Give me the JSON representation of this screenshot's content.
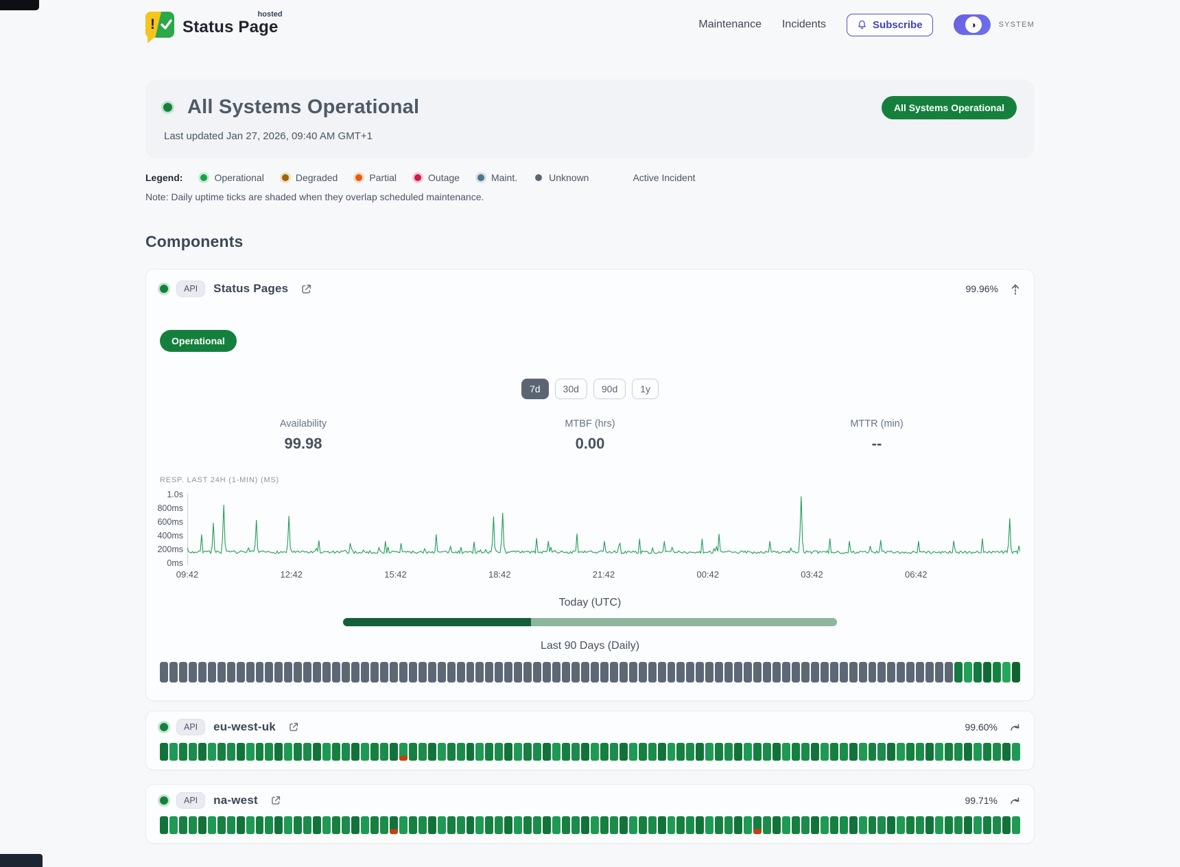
{
  "header": {
    "brand": {
      "title": "Status Page",
      "superscript": "hosted"
    },
    "nav_items": [
      "Maintenance",
      "Incidents"
    ],
    "subscribe_label": "Subscribe",
    "theme_toggle_label": "SYSTEM"
  },
  "hero": {
    "title": "All Systems Operational",
    "last_updated": "Last updated Jan 27, 2026, 09:40 AM GMT+1",
    "badge_label": "All Systems Operational",
    "badge_color": "#15803d"
  },
  "legend": {
    "label": "Legend:",
    "items": [
      {
        "label": "Operational",
        "color": "#16a34a",
        "ring": "#cbe9d6"
      },
      {
        "label": "Degraded",
        "color": "#a16207",
        "ring": "#ecdfc0"
      },
      {
        "label": "Partial",
        "color": "#e65c0d",
        "ring": "#f6d9c4"
      },
      {
        "label": "Outage",
        "color": "#c81e4a",
        "ring": "#f3c6d2"
      },
      {
        "label": "Maint.",
        "color": "#4f7587",
        "ring": "#d3e2eb"
      },
      {
        "label": "Unknown",
        "color": "#5b6672",
        "ring": "transparent"
      }
    ],
    "active_incident_label": "Active Incident",
    "note": "Note: Daily uptime ticks are shaded when they overlap scheduled maintenance."
  },
  "components": {
    "heading": "Components",
    "expanded": {
      "status_color": "#15803d",
      "type_badge": "API",
      "name": "Status Pages",
      "uptime": "99.96%",
      "status_label": "Operational",
      "range_options": [
        "7d",
        "30d",
        "90d",
        "1y"
      ],
      "active_range": "7d",
      "stats": [
        {
          "label": "Availability",
          "value": "99.98"
        },
        {
          "label": "MTBF (hrs)",
          "value": "0.00"
        },
        {
          "label": "MTTR (min)",
          "value": "--"
        }
      ],
      "chart_data": {
        "type": "line",
        "title": "RESP. LAST 24H (1-MIN) (MS)",
        "color": "#1f9d57",
        "ylim": [
          0,
          1000
        ],
        "y_ticks": [
          {
            "label": "1.0s",
            "value": 1000
          },
          {
            "label": "800ms",
            "value": 800
          },
          {
            "label": "600ms",
            "value": 600
          },
          {
            "label": "400ms",
            "value": 400
          },
          {
            "label": "200ms",
            "value": 200
          },
          {
            "label": "0ms",
            "value": 0
          }
        ],
        "x_ticks": [
          "09:42",
          "12:42",
          "15:42",
          "18:42",
          "21:42",
          "00:42",
          "03:42",
          "06:42"
        ],
        "baseline_ms": 150,
        "noise_ms": 40,
        "spikes": [
          [
            0.017,
            430
          ],
          [
            0.031,
            600
          ],
          [
            0.044,
            860
          ],
          [
            0.083,
            640
          ],
          [
            0.122,
            700
          ],
          [
            0.158,
            340
          ],
          [
            0.196,
            300
          ],
          [
            0.238,
            330
          ],
          [
            0.257,
            300
          ],
          [
            0.299,
            430
          ],
          [
            0.345,
            320
          ],
          [
            0.368,
            690
          ],
          [
            0.379,
            745
          ],
          [
            0.42,
            375
          ],
          [
            0.433,
            330
          ],
          [
            0.468,
            440
          ],
          [
            0.5,
            330
          ],
          [
            0.52,
            300
          ],
          [
            0.543,
            365
          ],
          [
            0.572,
            330
          ],
          [
            0.618,
            365
          ],
          [
            0.638,
            435
          ],
          [
            0.7,
            330
          ],
          [
            0.737,
            985
          ],
          [
            0.772,
            370
          ],
          [
            0.795,
            330
          ],
          [
            0.832,
            345
          ],
          [
            0.878,
            330
          ],
          [
            0.92,
            335
          ],
          [
            0.955,
            370
          ],
          [
            0.988,
            665
          ]
        ]
      },
      "today": {
        "label": "Today (UTC)",
        "progress_pct": 38,
        "bar_fill": "#15603a",
        "bar_track": "#8cb79c"
      },
      "history": {
        "label": "Last 90 Days (Daily)",
        "count": 90,
        "default": "unknown",
        "unknown_color": "#5d6876",
        "operational_from": 83,
        "green_shades": [
          "#157a40",
          "#1fa257",
          "#137a3e",
          "#0e6b35",
          "#15833f",
          "#22a85b",
          "#10632f"
        ]
      }
    },
    "collapsed": [
      {
        "status_color": "#15803d",
        "type_badge": "API",
        "name": "eu-west-uk",
        "uptime": "99.60%",
        "ticks": {
          "count": 90,
          "default": "operational",
          "green_shades": [
            "#1b8c4b",
            "#15803f",
            "#1e9a54",
            "#12733a"
          ],
          "partial": [
            25
          ],
          "partial_color": "#c2410c"
        }
      },
      {
        "status_color": "#15803d",
        "type_badge": "API",
        "name": "na-west",
        "uptime": "99.71%",
        "ticks": {
          "count": 90,
          "default": "operational",
          "green_shades": [
            "#1b8c4b",
            "#15803f",
            "#1e9a54",
            "#12733a"
          ],
          "partial": [
            24,
            62
          ],
          "partial_color": "#c2410c"
        }
      }
    ]
  }
}
